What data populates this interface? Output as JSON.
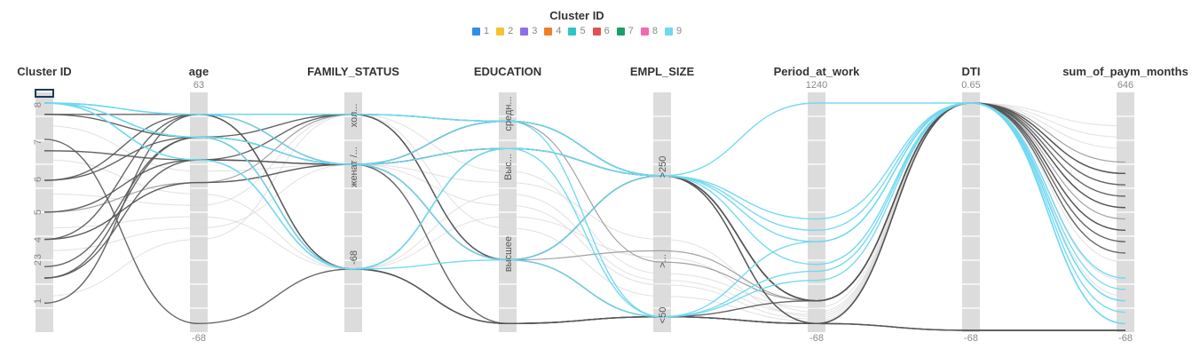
{
  "chart_data": {
    "type": "parallel_coordinates",
    "legend": {
      "title": "Cluster ID",
      "items": [
        {
          "label": "1",
          "color": "#2f8fe8"
        },
        {
          "label": "2",
          "color": "#f5c431"
        },
        {
          "label": "3",
          "color": "#8e6ee8"
        },
        {
          "label": "4",
          "color": "#f07f24"
        },
        {
          "label": "5",
          "color": "#2ec7c0"
        },
        {
          "label": "6",
          "color": "#e05252"
        },
        {
          "label": "7",
          "color": "#1a9e6a"
        },
        {
          "label": "8",
          "color": "#f06bb3"
        },
        {
          "label": "9",
          "color": "#6fd8f0"
        }
      ]
    },
    "axes": [
      {
        "name": "Cluster ID",
        "ticks": [
          "8",
          "7",
          "6",
          "5",
          "4",
          "3",
          "2",
          "1"
        ]
      },
      {
        "name": "age",
        "max": "63",
        "min": "-68"
      },
      {
        "name": "FAMILY_STATUS",
        "categories": [
          "хол...",
          "женат /...",
          "-68"
        ]
      },
      {
        "name": "EDUCATION",
        "categories": [
          "средн...",
          "Выс...",
          "высшее"
        ]
      },
      {
        "name": "EMPL_SIZE",
        "categories": [
          ">250",
          ">...",
          "<50"
        ]
      },
      {
        "name": "Period_at_work",
        "max": "1240",
        "min": "-68"
      },
      {
        "name": "DTI",
        "max": "0.65",
        "min": "-68"
      },
      {
        "name": "sum_of_paym_months",
        "max": "646",
        "min": "-68"
      }
    ],
    "colors": {
      "dark": "#555555",
      "highlight": "#6fd8f0",
      "faint": "#d9d9d9",
      "axis": "#dcdcdc"
    },
    "lines": [
      {
        "group": "highlight",
        "values": [
          0.0,
          0.05,
          0.05,
          0.08,
          0.32,
          0.51,
          0.0,
          0.97
        ]
      },
      {
        "group": "highlight",
        "values": [
          0.0,
          0.05,
          0.27,
          0.08,
          0.32,
          0.56,
          0.0,
          0.97
        ]
      },
      {
        "group": "highlight",
        "values": [
          0.0,
          0.15,
          0.27,
          0.2,
          0.32,
          0.61,
          0.0,
          0.92
        ]
      },
      {
        "group": "highlight",
        "values": [
          0.0,
          0.15,
          0.73,
          0.2,
          0.32,
          0.71,
          0.0,
          0.82
        ]
      },
      {
        "group": "highlight",
        "values": [
          0.0,
          0.25,
          0.73,
          0.69,
          0.94,
          0.74,
          0.0,
          0.87
        ]
      },
      {
        "group": "highlight",
        "values": [
          0.0,
          0.05,
          0.05,
          0.08,
          0.94,
          0.78,
          0.0,
          0.77
        ]
      },
      {
        "group": "highlight",
        "values": [
          0.0,
          0.15,
          0.27,
          0.69,
          0.32,
          0.0,
          0.0,
          0.97
        ]
      },
      {
        "group": "highlight",
        "values": [
          0.0,
          0.25,
          0.73,
          0.2,
          0.94,
          0.61,
          0.0,
          0.87
        ]
      },
      {
        "group": "dark",
        "values": [
          0.05,
          0.05,
          0.05,
          0.08,
          0.32,
          0.87,
          0.0,
          0.31
        ]
      },
      {
        "group": "dark",
        "values": [
          0.05,
          0.15,
          0.27,
          0.2,
          0.32,
          0.87,
          0.0,
          0.41
        ]
      },
      {
        "group": "dark",
        "values": [
          0.21,
          0.25,
          0.27,
          0.08,
          0.32,
          0.87,
          0.0,
          0.46
        ]
      },
      {
        "group": "dark",
        "values": [
          0.34,
          0.05,
          0.73,
          0.2,
          0.32,
          0.97,
          0.0,
          0.56
        ]
      },
      {
        "group": "dark",
        "values": [
          0.34,
          0.15,
          0.05,
          0.69,
          0.32,
          0.87,
          0.0,
          0.61
        ]
      },
      {
        "group": "dark",
        "values": [
          0.48,
          0.25,
          0.27,
          0.69,
          0.94,
          0.97,
          0.0,
          0.66
        ]
      },
      {
        "group": "dark",
        "values": [
          0.6,
          0.05,
          0.73,
          0.97,
          0.94,
          0.97,
          1.0,
          1.0
        ]
      },
      {
        "group": "dark",
        "values": [
          0.72,
          0.15,
          0.27,
          0.08,
          0.32,
          0.87,
          0.0,
          0.36
        ]
      },
      {
        "group": "dark",
        "values": [
          0.77,
          0.25,
          0.05,
          0.69,
          0.32,
          0.97,
          0.0,
          0.46
        ]
      },
      {
        "group": "dark",
        "values": [
          0.77,
          0.15,
          0.73,
          0.97,
          0.94,
          0.97,
          1.0,
          1.0
        ]
      },
      {
        "group": "dark",
        "values": [
          0.88,
          0.05,
          0.27,
          0.2,
          0.32,
          0.87,
          0.0,
          0.56
        ]
      },
      {
        "group": "dark",
        "values": [
          0.16,
          0.97,
          0.73,
          0.97,
          0.94,
          0.97,
          1.0,
          1.0
        ]
      },
      {
        "group": "dark",
        "values": [
          0.6,
          0.35,
          0.27,
          0.97,
          0.94,
          0.87,
          0.0,
          0.31
        ]
      },
      {
        "group": "mid",
        "values": [
          0.6,
          0.35,
          0.27,
          0.69,
          0.65,
          0.87,
          0.0,
          0.51
        ]
      },
      {
        "group": "mid",
        "values": [
          0.48,
          0.35,
          0.05,
          0.08,
          0.7,
          0.87,
          0.0,
          0.26
        ]
      },
      {
        "group": "faint",
        "values": [
          0.4,
          0.45,
          0.05,
          0.3,
          0.75,
          0.9,
          0.0,
          0.2
        ]
      },
      {
        "group": "faint",
        "values": [
          0.65,
          0.55,
          0.27,
          0.45,
          0.8,
          0.95,
          0.0,
          0.15
        ]
      },
      {
        "group": "faint",
        "values": [
          0.25,
          0.4,
          0.73,
          0.4,
          0.78,
          0.93,
          0.0,
          0.85
        ]
      },
      {
        "group": "faint",
        "values": [
          0.85,
          0.6,
          0.05,
          0.55,
          0.85,
          0.96,
          0.0,
          0.78
        ]
      },
      {
        "group": "faint",
        "values": [
          0.1,
          0.3,
          0.27,
          0.35,
          0.6,
          0.92,
          0.0,
          0.1
        ]
      },
      {
        "group": "faint",
        "values": [
          0.55,
          0.5,
          0.73,
          0.5,
          0.68,
          0.94,
          0.0,
          0.7
        ]
      }
    ]
  }
}
